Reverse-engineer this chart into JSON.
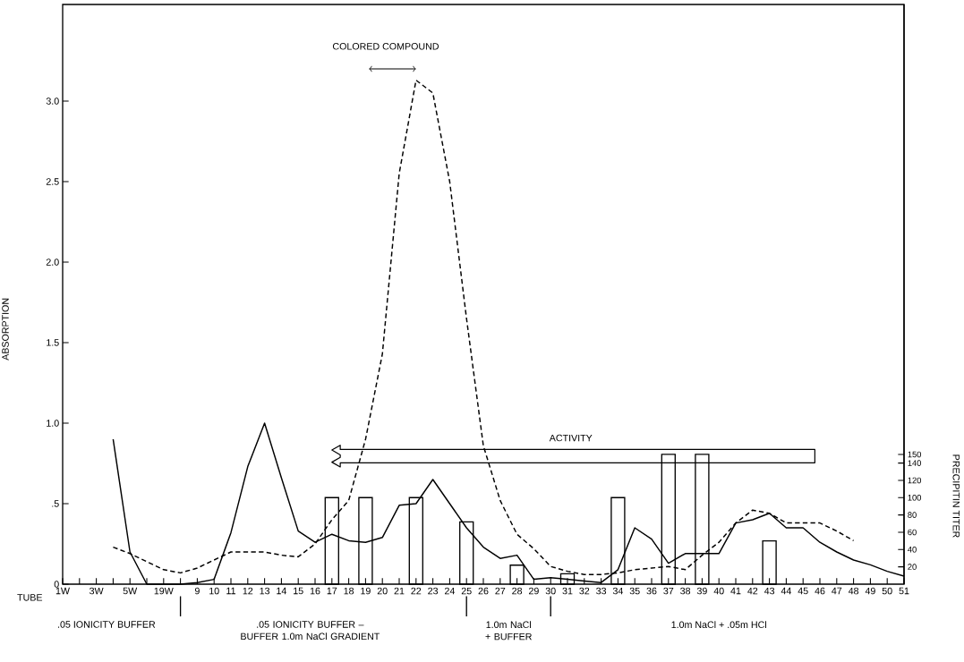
{
  "chart_data": {
    "type": "line",
    "xlabel": "TUBE",
    "ylabel": "ABSORPTION",
    "y2label": "PRECIPITIN TITER",
    "categories": [
      "1W",
      null,
      "3W",
      null,
      "5W",
      null,
      "19W",
      null,
      "9",
      "10",
      "11",
      "12",
      "13",
      "14",
      "15",
      "16",
      "17",
      "18",
      "19",
      "20",
      "21",
      "22",
      "23",
      "24",
      "25",
      "26",
      "27",
      "28",
      "29",
      "30",
      "31",
      "32",
      "33",
      "34",
      "35",
      "36",
      "37",
      "38",
      "39",
      "40",
      "41",
      "42",
      "43",
      "44",
      "45",
      "46",
      "47",
      "48",
      "49",
      "50",
      "51"
    ],
    "series": [
      {
        "color": "#000000",
        "line_style": "solid",
        "values": [
          0,
          null,
          null,
          0.9,
          0.2,
          0,
          0,
          0,
          0.01,
          0.03,
          0.32,
          0.73,
          1.0,
          0.66,
          0.33,
          0.26,
          0.31,
          0.27,
          0.26,
          0.29,
          0.49,
          0.5,
          0.65,
          0.5,
          0.35,
          0.23,
          0.16,
          0.18,
          0.03,
          0.04,
          0.03,
          0.02,
          0.01,
          0.09,
          0.35,
          0.28,
          0.13,
          0.19,
          0.19,
          0.19,
          0.38,
          0.4,
          0.44,
          0.35,
          0.35,
          0.26,
          0.2,
          0.15,
          0.12,
          0.08,
          0.05
        ]
      },
      {
        "color": "#000000",
        "line_style": "dashed",
        "values": [
          null,
          null,
          null,
          0.23,
          0.19,
          0.14,
          0.09,
          0.07,
          0.1,
          0.15,
          0.2,
          0.2,
          0.2,
          0.18,
          0.17,
          0.25,
          0.4,
          0.52,
          0.9,
          1.43,
          2.55,
          3.13,
          3.05,
          2.5,
          1.65,
          0.86,
          0.52,
          0.31,
          0.22,
          0.11,
          0.08,
          0.06,
          0.06,
          0.07,
          0.09,
          0.1,
          0.11,
          0.09,
          0.18,
          0.26,
          0.38,
          0.46,
          0.44,
          0.38,
          0.38,
          0.38,
          0.33,
          0.27,
          null,
          null,
          null
        ]
      },
      {
        "type": "bar",
        "axis": "y2",
        "color": "#000000",
        "values": [
          null,
          null,
          null,
          null,
          null,
          null,
          null,
          null,
          null,
          null,
          null,
          null,
          null,
          null,
          null,
          null,
          100,
          null,
          100,
          null,
          null,
          100,
          null,
          null,
          72,
          null,
          null,
          22,
          null,
          null,
          12,
          null,
          null,
          100,
          null,
          null,
          150,
          null,
          150,
          null,
          null,
          null,
          50,
          null,
          null,
          null,
          null,
          null,
          null,
          null,
          null
        ]
      }
    ],
    "ylim": [
      0,
      3.6
    ],
    "yticks": [
      0,
      {
        "value": 0.5,
        "label": ".5"
      },
      {
        "value": 1,
        "label": "1.0"
      },
      1.5,
      {
        "value": 2,
        "label": "2.0"
      },
      2.5,
      {
        "value": 3,
        "label": "3.0"
      }
    ],
    "y2lim": [
      0,
      670
    ],
    "y2ticks": [
      20,
      40,
      60,
      80,
      100,
      120,
      140,
      150
    ],
    "marker": "none",
    "annotations": [
      "COLORED COMPOUND",
      "ACTIVITY",
      ".05 IONICITY BUFFER",
      ".05 IONICITY BUFFER – BUFFER 1.0m NaCl GRADIENT",
      "1.0m NaCl + BUFFER",
      "1.0m NaCl + .05m HCl"
    ]
  }
}
